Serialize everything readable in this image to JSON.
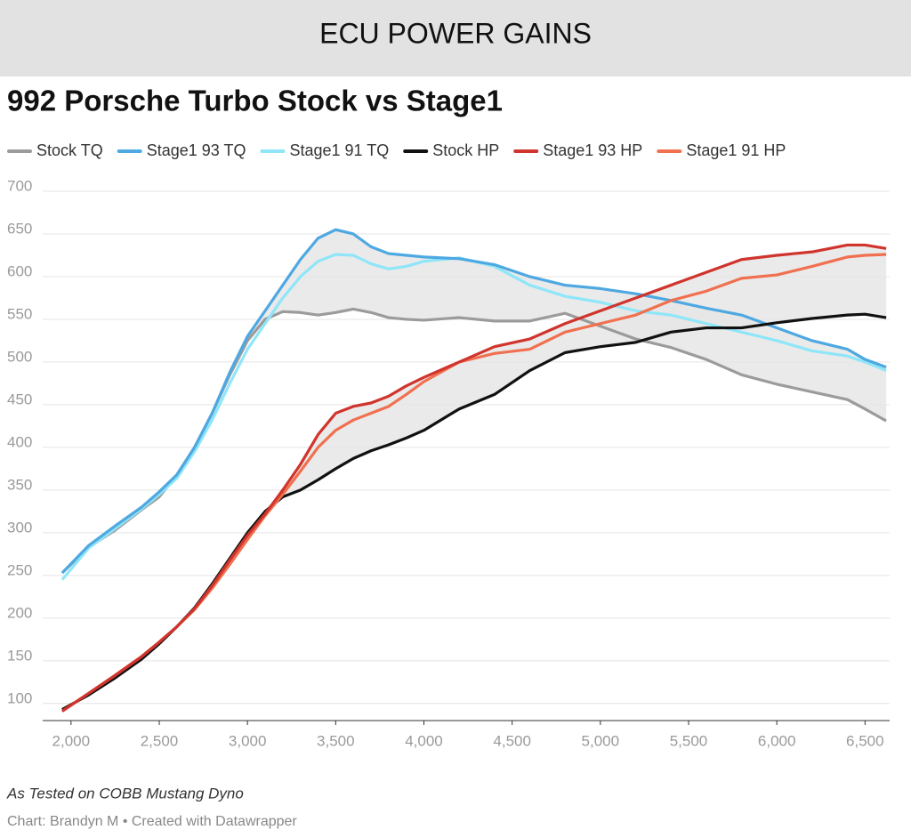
{
  "header": "ECU POWER GAINS",
  "chart_data": {
    "type": "line",
    "title": "992 Porsche Turbo Stock vs Stage1",
    "x": [
      1950,
      2100,
      2250,
      2400,
      2500,
      2600,
      2700,
      2800,
      2900,
      3000,
      3100,
      3200,
      3300,
      3400,
      3500,
      3600,
      3700,
      3800,
      3900,
      4000,
      4200,
      4400,
      4600,
      4800,
      5000,
      5200,
      5400,
      5600,
      5800,
      6000,
      6200,
      6400,
      6500,
      6620
    ],
    "series": [
      {
        "name": "Stock TQ",
        "color": "#9b9b9b",
        "values": [
          253,
          283,
          303,
          327,
          342,
          368,
          400,
          440,
          485,
          525,
          550,
          559,
          558,
          555,
          558,
          562,
          558,
          552,
          550,
          549,
          552,
          548,
          548,
          557,
          542,
          527,
          517,
          503,
          485,
          474,
          465,
          456,
          445,
          431
        ]
      },
      {
        "name": "Stage1 93 TQ",
        "color": "#4ea8e2",
        "values": [
          253,
          285,
          308,
          330,
          348,
          368,
          400,
          440,
          488,
          530,
          560,
          590,
          620,
          645,
          655,
          650,
          635,
          627,
          625,
          623,
          621,
          614,
          600,
          590,
          586,
          580,
          572,
          563,
          555,
          540,
          525,
          515,
          503,
          494
        ]
      },
      {
        "name": "Stage1 91 TQ",
        "color": "#8fe6f8",
        "values": [
          245,
          282,
          305,
          328,
          345,
          364,
          395,
          432,
          475,
          515,
          545,
          575,
          600,
          618,
          626,
          625,
          615,
          609,
          612,
          618,
          622,
          612,
          590,
          577,
          570,
          560,
          555,
          545,
          535,
          525,
          513,
          507,
          500,
          490
        ]
      },
      {
        "name": "Stock HP",
        "color": "#111111",
        "values": [
          93,
          110,
          130,
          152,
          170,
          190,
          212,
          240,
          270,
          300,
          325,
          342,
          350,
          362,
          375,
          387,
          396,
          403,
          411,
          420,
          445,
          462,
          490,
          511,
          518,
          523,
          535,
          540,
          540,
          546,
          551,
          555,
          556,
          552
        ]
      },
      {
        "name": "Stage1 93 HP",
        "color": "#d0342c",
        "values": [
          91,
          112,
          133,
          155,
          172,
          190,
          211,
          238,
          268,
          297,
          322,
          350,
          380,
          415,
          440,
          448,
          452,
          460,
          472,
          482,
          500,
          518,
          527,
          545,
          560,
          575,
          590,
          605,
          620,
          625,
          629,
          637,
          637,
          633
        ]
      },
      {
        "name": "Stage1 91 HP",
        "color": "#f0704f",
        "values": [
          91,
          112,
          133,
          155,
          172,
          190,
          210,
          235,
          263,
          292,
          320,
          345,
          372,
          400,
          420,
          432,
          440,
          448,
          462,
          477,
          500,
          510,
          515,
          535,
          545,
          555,
          572,
          583,
          598,
          602,
          612,
          623,
          625,
          626
        ]
      }
    ],
    "xlim": [
      1900,
      6700
    ],
    "xticks": [
      {
        "value": 2000,
        "label": "2,000"
      },
      {
        "value": 2500,
        "label": "2,500"
      },
      {
        "value": 3000,
        "label": "3,000"
      },
      {
        "value": 3500,
        "label": "3,500"
      },
      {
        "value": 4000,
        "label": "4,000"
      },
      {
        "value": 4500,
        "label": "4,500"
      },
      {
        "value": 5000,
        "label": "5,000"
      },
      {
        "value": 5500,
        "label": "5,500"
      },
      {
        "value": 6000,
        "label": "6,000"
      },
      {
        "value": 6500,
        "label": "6,500"
      }
    ],
    "ylim": [
      80,
      700
    ],
    "yticks": [
      100,
      150,
      200,
      250,
      300,
      350,
      400,
      450,
      500,
      550,
      600,
      650,
      700
    ],
    "grid": true,
    "note": "As Tested on COBB Mustang Dyno",
    "source": "Chart: Brandyn M • Created with Datawrapper"
  }
}
